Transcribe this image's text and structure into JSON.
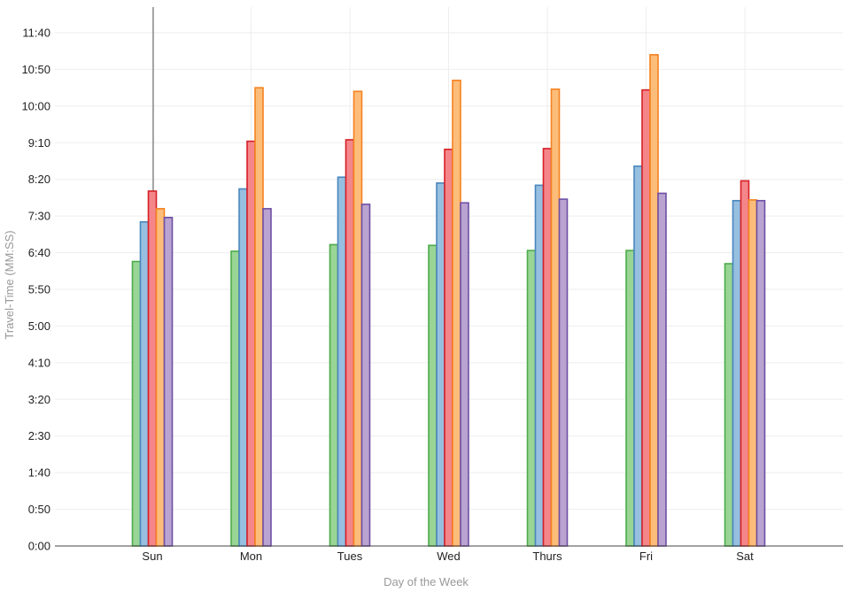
{
  "chart_data": {
    "type": "bar",
    "title": "",
    "xlabel": "Day of the Week",
    "ylabel": "Travel-Time (MM:SS)",
    "categories": [
      "Sun",
      "Mon",
      "Tues",
      "Wed",
      "Thurs",
      "Fri",
      "Sat"
    ],
    "y_unit": "seconds",
    "ylim": [
      0,
      735
    ],
    "y_ticks": [
      0,
      50,
      100,
      150,
      200,
      250,
      300,
      350,
      400,
      450,
      500,
      550,
      600,
      650,
      700
    ],
    "y_tick_labels": [
      "0:00",
      "0:50",
      "1:40",
      "2:30",
      "3:20",
      "4:10",
      "5:00",
      "5:50",
      "6:40",
      "7:30",
      "8:20",
      "9:10",
      "10:00",
      "10:50",
      "11:40"
    ],
    "grid": true,
    "legend": "none",
    "series": [
      {
        "values": [
          388,
          402,
          411,
          410,
          403,
          403,
          385
        ],
        "color": "#99d594",
        "stroke": "#4dac4b"
      },
      {
        "values": [
          442,
          487,
          503,
          495,
          492,
          518,
          471
        ],
        "color": "#96bfe0",
        "stroke": "#4a87bd"
      },
      {
        "values": [
          484,
          552,
          554,
          541,
          542,
          622,
          498
        ],
        "color": "#f4868a",
        "stroke": "#d62027"
      },
      {
        "values": [
          460,
          625,
          620,
          635,
          623,
          670,
          472
        ],
        "color": "#fdbd7a",
        "stroke": "#f58220"
      },
      {
        "values": [
          448,
          460,
          466,
          468,
          473,
          481,
          471
        ],
        "color": "#b9a3d0",
        "stroke": "#6e4fa5"
      }
    ]
  }
}
